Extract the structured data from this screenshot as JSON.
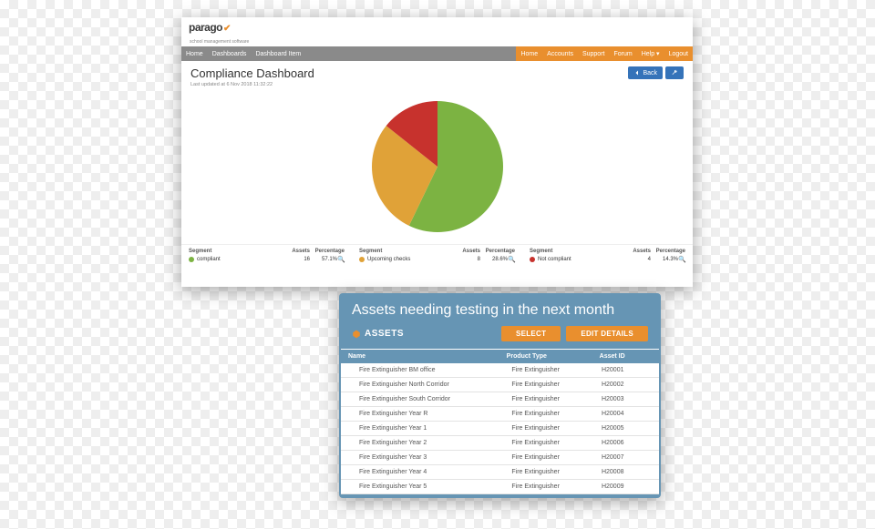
{
  "logo": {
    "text": "parago",
    "accent": "✔",
    "subtitle": "school management software"
  },
  "nav": {
    "left": [
      "Home",
      "Dashboards",
      "Dashboard Item"
    ],
    "right": [
      "Home",
      "Accounts",
      "Support",
      "Forum",
      "Help ▾",
      "Logout"
    ]
  },
  "page": {
    "title": "Compliance Dashboard",
    "last_updated": "Last updated at 6 Nov 2018 11:32:22",
    "back_label": "Back"
  },
  "pie": {
    "type": "pie",
    "background_color": "#ffffff",
    "slices": [
      {
        "label": "compliant",
        "value": 16,
        "pct": "57.1%",
        "color": "#7cb342",
        "start": 0,
        "end": 205.7
      },
      {
        "label": "Upcoming checks",
        "value": 8,
        "pct": "28.6%",
        "color": "#e0a238",
        "start": 205.7,
        "end": 308.6
      },
      {
        "label": "Not compliant",
        "value": 4,
        "pct": "14.3%",
        "color": "#c7322d",
        "start": 308.6,
        "end": 360
      }
    ],
    "legend_headers": {
      "segment": "Segment",
      "assets": "Assets",
      "percentage": "Percentage"
    }
  },
  "panel": {
    "title": "Assets needing testing in the next month",
    "assets_label": "ASSETS",
    "select_label": "SELECT",
    "edit_label": "EDIT DETAILS",
    "header_bg": "#6695b4",
    "btn_bg": "#e98f2e"
  },
  "table": {
    "columns": [
      "Name",
      "Product Type",
      "Asset ID"
    ],
    "rows": [
      [
        "Fire Extinguisher BM office",
        "Fire Extinguisher",
        "H20001"
      ],
      [
        "Fire Extinguisher North Corridor",
        "Fire Extinguisher",
        "H20002"
      ],
      [
        "Fire Extinguisher South Corridor",
        "Fire Extinguisher",
        "H20003"
      ],
      [
        "Fire Extinguisher Year R",
        "Fire Extinguisher",
        "H20004"
      ],
      [
        "Fire Extinguisher Year 1",
        "Fire Extinguisher",
        "H20005"
      ],
      [
        "Fire Extinguisher Year 2",
        "Fire Extinguisher",
        "H20006"
      ],
      [
        "Fire Extinguisher Year 3",
        "Fire Extinguisher",
        "H20007"
      ],
      [
        "Fire Extinguisher Year 4",
        "Fire Extinguisher",
        "H20008"
      ],
      [
        "Fire Extinguisher Year 5",
        "Fire Extinguisher",
        "H20009"
      ]
    ]
  }
}
